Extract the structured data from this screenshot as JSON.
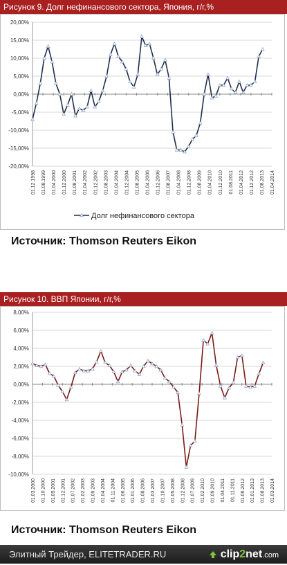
{
  "chart_data": [
    {
      "type": "line",
      "title": "Рисунок 9. Долг нефинансового  сектора, Япония, г/г,%",
      "ylim": [
        -20,
        20
      ],
      "yticks": [
        "20,00%",
        "15,00%",
        "10,00%",
        "5,00%",
        "0,00%",
        "-5,00%",
        "-10,00%",
        "-15,00%",
        "-20,00%"
      ],
      "x_labels": [
        "01.12.1998",
        "01.08.1999",
        "01.04.2000",
        "01.12.2000",
        "01.08.2001",
        "01.04.2002",
        "01.12.2002",
        "01.08.2003",
        "01.04.2004",
        "01.12.2004",
        "01.08.2005",
        "01.04.2006",
        "01.12.2006",
        "01.08.2007",
        "01.04.2008",
        "01.12.2008",
        "01.08.2009",
        "01.04.2010",
        "01.12.2010",
        "01.08.2011",
        "01.04.2012",
        "01.12.2012",
        "01.08.2013",
        "01.04.2014"
      ],
      "series": [
        {
          "name": "Долг нефинансового сектора",
          "color": "#1f2d4d",
          "x": [
            "1998-12",
            "1999-03",
            "1999-06",
            "1999-09",
            "1999-12",
            "2000-03",
            "2000-06",
            "2000-09",
            "2000-12",
            "2001-03",
            "2001-06",
            "2001-09",
            "2001-12",
            "2002-03",
            "2002-06",
            "2002-09",
            "2002-12",
            "2003-03",
            "2003-06",
            "2003-09",
            "2003-12",
            "2004-03",
            "2004-06",
            "2004-09",
            "2004-12",
            "2005-03",
            "2005-06",
            "2005-09",
            "2005-12",
            "2006-03",
            "2006-06",
            "2006-09",
            "2006-12",
            "2007-03",
            "2007-06",
            "2007-09",
            "2007-12",
            "2008-03",
            "2008-06",
            "2008-09",
            "2008-12",
            "2009-03",
            "2009-06",
            "2009-09",
            "2009-12",
            "2010-03",
            "2010-06",
            "2010-09",
            "2010-12",
            "2011-03",
            "2011-06",
            "2011-09",
            "2011-12",
            "2012-03",
            "2012-06",
            "2012-09",
            "2012-12",
            "2013-03",
            "2013-06",
            "2013-09"
          ],
          "values": [
            -7,
            -2.5,
            3,
            10,
            13.3,
            9,
            3,
            0,
            -5.5,
            -3,
            0,
            -6,
            -4,
            -4.5,
            -3.5,
            1,
            -3.5,
            -2,
            1,
            5,
            11,
            14,
            10.5,
            9,
            7,
            3.5,
            2,
            5.5,
            16,
            13.5,
            14,
            10,
            5.5,
            7,
            9.5,
            4.5,
            -10.5,
            -15.5,
            -15.5,
            -16,
            -14.5,
            -12.5,
            -11.5,
            -8,
            0,
            5.5,
            -1,
            -0.5,
            2.5,
            2.5,
            4.5,
            1.5,
            0.5,
            3.5,
            0.5,
            2.5,
            2.5,
            3.5,
            10.5,
            12.5
          ]
        }
      ],
      "legend": "bottom",
      "grid": true
    },
    {
      "type": "line",
      "title": "Рисунок 10. ВВП Японии, г/г,%",
      "ylim": [
        -10,
        8
      ],
      "yticks": [
        "8,00%",
        "6,00%",
        "4,00%",
        "2,00%",
        "0,00%",
        "-2,00%",
        "-4,00%",
        "-6,00%",
        "-8,00%",
        "-10,00%"
      ],
      "x_labels": [
        "01.03.2000",
        "01.10.2000",
        "01.05.2001",
        "01.12.2001",
        "01.07.2002",
        "01.02.2003",
        "01.09.2003",
        "01.04.2004",
        "01.11.2004",
        "01.06.2005",
        "01.01.2006",
        "01.08.2006",
        "01.03.2007",
        "01.10.2007",
        "01.05.2008",
        "01.12.2008",
        "01.07.2009",
        "01.02.2010",
        "01.09.2010",
        "01.04.2011",
        "01.11.2011",
        "01.06.2012",
        "01.01.2013",
        "01.08.2013",
        "01.03.2014"
      ],
      "series": [
        {
          "name": "",
          "color": "#7a1a17",
          "x": [
            "2000-03",
            "2000-06",
            "2000-09",
            "2000-12",
            "2001-03",
            "2001-06",
            "2001-09",
            "2001-12",
            "2002-03",
            "2002-06",
            "2002-09",
            "2002-12",
            "2003-03",
            "2003-06",
            "2003-09",
            "2003-12",
            "2004-03",
            "2004-06",
            "2004-09",
            "2004-12",
            "2005-03",
            "2005-06",
            "2005-09",
            "2005-12",
            "2006-03",
            "2006-06",
            "2006-09",
            "2006-12",
            "2007-03",
            "2007-06",
            "2007-09",
            "2007-12",
            "2008-03",
            "2008-06",
            "2008-09",
            "2008-12",
            "2009-03",
            "2009-06",
            "2009-09",
            "2009-12",
            "2010-03",
            "2010-06",
            "2010-09",
            "2010-12",
            "2011-03",
            "2011-06",
            "2011-09",
            "2011-12",
            "2012-03",
            "2012-06",
            "2012-09",
            "2012-12",
            "2013-03",
            "2013-06",
            "2013-09"
          ],
          "values": [
            2.3,
            2.1,
            2.0,
            2.2,
            1.2,
            0.9,
            -0.1,
            -0.8,
            -1.7,
            -0.3,
            1.3,
            1.7,
            1.5,
            1.5,
            1.7,
            2.5,
            3.7,
            2.4,
            2.1,
            1.4,
            0.3,
            1.4,
            1.6,
            2.1,
            1.5,
            1.1,
            2.0,
            2.6,
            2.3,
            2.0,
            1.6,
            0.7,
            0.3,
            -0.3,
            -0.9,
            -4.5,
            -9.2,
            -6.8,
            -6.3,
            -1.0,
            4.9,
            4.5,
            5.7,
            2.1,
            -0.2,
            -1.5,
            -0.4,
            0.2,
            3.0,
            3.2,
            -0.2,
            -0.3,
            -0.2,
            1.2,
            2.4
          ]
        }
      ],
      "legend": "none",
      "grid": true
    }
  ],
  "source_1": "Источник: Thomson Reuters Eikon",
  "source_2": "Источник: Thomson Reuters Eikon",
  "footer": {
    "site_text": "Элитный Трейдер, ELITETRADER.RU",
    "logo_part1": "clip",
    "logo_part2": "2",
    "logo_part3": "net",
    "logo_suffix": ".com"
  }
}
